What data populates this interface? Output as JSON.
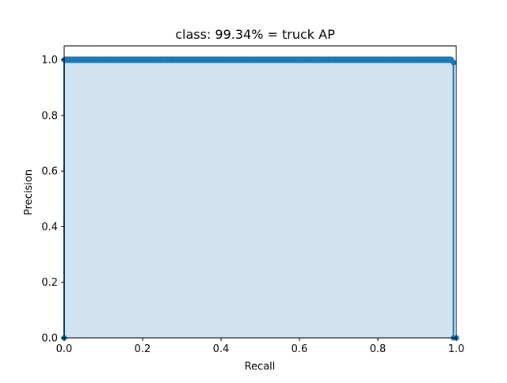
{
  "chart_data": {
    "type": "area",
    "title": "class: 99.34% = truck AP",
    "xlabel": "Recall",
    "ylabel": "Precision",
    "xlim": [
      0.0,
      1.0
    ],
    "ylim": [
      0.0,
      1.05
    ],
    "xticks": [
      "0.0",
      "0.2",
      "0.4",
      "0.6",
      "0.8",
      "1.0"
    ],
    "yticks": [
      "0.0",
      "0.2",
      "0.4",
      "0.6",
      "0.8",
      "1.0"
    ],
    "grid": false,
    "legend": "none",
    "series": [
      {
        "recall": [
          0.0,
          0.0,
          0.003,
          0.003,
          0.1,
          0.2,
          0.3,
          0.4,
          0.5,
          0.6,
          0.7,
          0.8,
          0.9,
          0.98,
          0.986,
          0.993,
          0.993,
          1.0
        ],
        "precision": [
          0.0,
          1.0,
          1.0,
          1.0,
          1.0,
          1.0,
          1.0,
          1.0,
          1.0,
          1.0,
          1.0,
          1.0,
          1.0,
          1.0,
          1.0,
          0.99,
          0.0,
          0.0
        ],
        "color": "#1f77b4",
        "fill_color": "#d1e3f0"
      }
    ]
  }
}
